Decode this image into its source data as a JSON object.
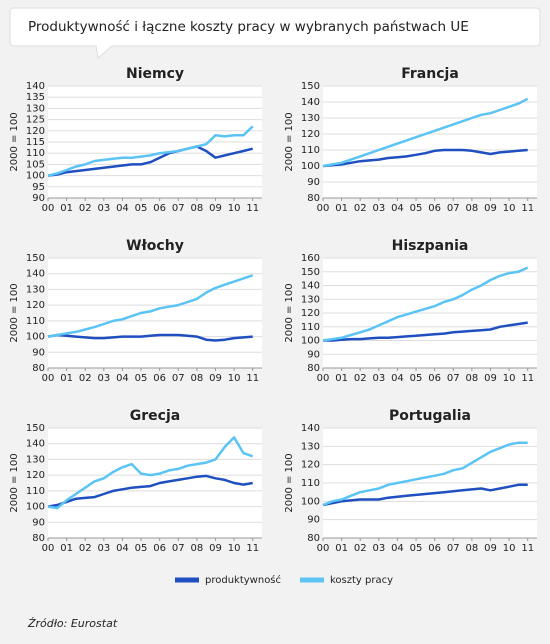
{
  "title": "Produktywność i łączne koszty pracy w wybranych państwach UE",
  "source": "Źródło: Eurostat",
  "chart_data": [
    {
      "type": "line",
      "title": "Niemcy",
      "ylabel": "2000 = 100",
      "x": [
        0,
        0.5,
        1,
        1.5,
        2,
        2.5,
        3,
        3.5,
        4,
        4.5,
        5,
        5.5,
        6,
        6.5,
        7,
        7.5,
        8,
        8.5,
        9,
        9.5,
        10,
        10.5,
        11
      ],
      "xlim": [
        0,
        11.5
      ],
      "xticks": [
        {
          "value": 0,
          "label": "00"
        },
        {
          "value": 1,
          "label": "01"
        },
        {
          "value": 2,
          "label": "02"
        },
        {
          "value": 3,
          "label": "03"
        },
        {
          "value": 4,
          "label": "04"
        },
        {
          "value": 5,
          "label": "05"
        },
        {
          "value": 6,
          "label": "06"
        },
        {
          "value": 7,
          "label": "07"
        },
        {
          "value": 8,
          "label": "08"
        },
        {
          "value": 9,
          "label": "09"
        },
        10,
        11
      ],
      "ylim": [
        90,
        140
      ],
      "yticks": [
        90,
        95,
        100,
        105,
        110,
        115,
        120,
        125,
        130,
        135,
        140
      ],
      "grid": true,
      "series": [
        {
          "name": "produktywność",
          "color": "#1f4fc0",
          "values": [
            100,
            100.5,
            101.5,
            102,
            102.5,
            103,
            103.5,
            104,
            104.5,
            105,
            105,
            106,
            108,
            110,
            111,
            112,
            113,
            111,
            108,
            109,
            110,
            111,
            112
          ]
        },
        {
          "name": "koszty pracy",
          "color": "#5bc4f5",
          "values": [
            100,
            101,
            102.5,
            104,
            105,
            106.5,
            107,
            107.5,
            108,
            108,
            108.5,
            109,
            110,
            110.5,
            111,
            112,
            113,
            114,
            118,
            117.5,
            118,
            118,
            122
          ]
        }
      ]
    },
    {
      "type": "line",
      "title": "Francja",
      "ylabel": "2000 = 100",
      "x": [
        0,
        0.5,
        1,
        1.5,
        2,
        2.5,
        3,
        3.5,
        4,
        4.5,
        5,
        5.5,
        6,
        6.5,
        7,
        7.5,
        8,
        8.5,
        9,
        9.5,
        10,
        10.5,
        11
      ],
      "xlim": [
        0,
        11.5
      ],
      "xticks": [
        {
          "value": 0,
          "label": "00"
        },
        {
          "value": 1,
          "label": "01"
        },
        {
          "value": 2,
          "label": "02"
        },
        {
          "value": 3,
          "label": "03"
        },
        {
          "value": 4,
          "label": "04"
        },
        {
          "value": 5,
          "label": "05"
        },
        {
          "value": 6,
          "label": "06"
        },
        {
          "value": 7,
          "label": "07"
        },
        {
          "value": 8,
          "label": "08"
        },
        {
          "value": 9,
          "label": "09"
        },
        10,
        11
      ],
      "ylim": [
        80,
        150
      ],
      "yticks": [
        80,
        90,
        100,
        110,
        120,
        130,
        140,
        150
      ],
      "grid": true,
      "series": [
        {
          "color": "#1f4fc0",
          "values": [
            100,
            100.5,
            101,
            102,
            103,
            103.5,
            104,
            105,
            105.5,
            106,
            107,
            108,
            109.5,
            110,
            110,
            110,
            109.5,
            108.5,
            107.5,
            108.5,
            109,
            109.5,
            110
          ]
        },
        {
          "color": "#5bc4f5",
          "values": [
            100,
            101,
            102,
            104,
            106,
            108,
            110,
            112,
            114,
            116,
            118,
            120,
            122,
            124,
            126,
            128,
            130,
            132,
            133,
            135,
            137,
            139,
            142
          ]
        }
      ]
    },
    {
      "type": "line",
      "title": "Włochy",
      "ylabel": "2000 = 100",
      "x": [
        0,
        0.5,
        1,
        1.5,
        2,
        2.5,
        3,
        3.5,
        4,
        4.5,
        5,
        5.5,
        6,
        6.5,
        7,
        7.5,
        8,
        8.5,
        9,
        9.5,
        10,
        10.5,
        11
      ],
      "xlim": [
        0,
        11.5
      ],
      "xticks": [
        {
          "value": 0,
          "label": "00"
        },
        {
          "value": 1,
          "label": "01"
        },
        {
          "value": 2,
          "label": "02"
        },
        {
          "value": 3,
          "label": "03"
        },
        {
          "value": 4,
          "label": "04"
        },
        {
          "value": 5,
          "label": "05"
        },
        {
          "value": 6,
          "label": "06"
        },
        {
          "value": 7,
          "label": "07"
        },
        {
          "value": 8,
          "label": "08"
        },
        {
          "value": 9,
          "label": "09"
        },
        10,
        11
      ],
      "ylim": [
        80,
        150
      ],
      "yticks": [
        80,
        90,
        100,
        110,
        120,
        130,
        140,
        150
      ],
      "grid": true,
      "series": [
        {
          "color": "#1f4fc0",
          "values": [
            100,
            101,
            100.5,
            100,
            99.5,
            99,
            99,
            99.5,
            100,
            100,
            100,
            100.5,
            101,
            101,
            101,
            100.5,
            100,
            98,
            97.5,
            98,
            99,
            99.5,
            100
          ]
        },
        {
          "color": "#5bc4f5",
          "values": [
            100,
            101,
            102,
            103,
            104.5,
            106,
            108,
            110,
            111,
            113,
            115,
            116,
            118,
            119,
            120,
            122,
            124,
            128,
            131,
            133,
            135,
            137,
            139
          ]
        }
      ]
    },
    {
      "type": "line",
      "title": "Hiszpania",
      "ylabel": "2000 = 100",
      "x": [
        0,
        0.5,
        1,
        1.5,
        2,
        2.5,
        3,
        3.5,
        4,
        4.5,
        5,
        5.5,
        6,
        6.5,
        7,
        7.5,
        8,
        8.5,
        9,
        9.5,
        10,
        10.5,
        11
      ],
      "xlim": [
        0,
        11.5
      ],
      "xticks": [
        {
          "value": 0,
          "label": "00"
        },
        {
          "value": 1,
          "label": "01"
        },
        {
          "value": 2,
          "label": "02"
        },
        {
          "value": 3,
          "label": "03"
        },
        {
          "value": 4,
          "label": "04"
        },
        {
          "value": 5,
          "label": "05"
        },
        {
          "value": 6,
          "label": "06"
        },
        {
          "value": 7,
          "label": "07"
        },
        {
          "value": 8,
          "label": "08"
        },
        {
          "value": 9,
          "label": "09"
        },
        10,
        11
      ],
      "ylim": [
        80,
        160
      ],
      "yticks": [
        80,
        90,
        100,
        110,
        120,
        130,
        140,
        150,
        160
      ],
      "grid": true,
      "series": [
        {
          "color": "#1f4fc0",
          "values": [
            100,
            100,
            100.5,
            101,
            101,
            101.5,
            102,
            102,
            102.5,
            103,
            103.5,
            104,
            104.5,
            105,
            106,
            106.5,
            107,
            107.5,
            108,
            110,
            111,
            112,
            113
          ]
        },
        {
          "color": "#5bc4f5",
          "values": [
            100,
            101,
            102,
            104,
            106,
            108,
            111,
            114,
            117,
            119,
            121,
            123,
            125,
            128,
            130,
            133,
            137,
            140,
            144,
            147,
            149,
            150,
            153
          ]
        }
      ]
    },
    {
      "type": "line",
      "title": "Grecja",
      "ylabel": "2000 = 100",
      "x": [
        0,
        0.5,
        1,
        1.5,
        2,
        2.5,
        3,
        3.5,
        4,
        4.5,
        5,
        5.5,
        6,
        6.5,
        7,
        7.5,
        8,
        8.5,
        9,
        9.5,
        10,
        10.5,
        11
      ],
      "xlim": [
        0,
        11.5
      ],
      "xticks": [
        {
          "value": 0,
          "label": "00"
        },
        {
          "value": 1,
          "label": "01"
        },
        {
          "value": 2,
          "label": "02"
        },
        {
          "value": 3,
          "label": "03"
        },
        {
          "value": 4,
          "label": "04"
        },
        {
          "value": 5,
          "label": "05"
        },
        {
          "value": 6,
          "label": "06"
        },
        {
          "value": 7,
          "label": "07"
        },
        {
          "value": 8,
          "label": "08"
        },
        {
          "value": 9,
          "label": "09"
        },
        10,
        11
      ],
      "ylim": [
        80,
        150
      ],
      "yticks": [
        80,
        90,
        100,
        110,
        120,
        130,
        140,
        150
      ],
      "grid": true,
      "series": [
        {
          "color": "#1f4fc0",
          "values": [
            100,
            101,
            103,
            105,
            105.5,
            106,
            108,
            110,
            111,
            112,
            112.5,
            113,
            115,
            116,
            117,
            118,
            119,
            119.5,
            118,
            117,
            115,
            114,
            115
          ]
        },
        {
          "color": "#5bc4f5",
          "values": [
            100,
            99,
            104,
            108,
            112,
            116,
            118,
            122,
            125,
            127,
            121,
            120,
            121,
            123,
            124,
            126,
            127,
            128,
            130,
            138,
            144,
            134,
            132
          ]
        }
      ]
    },
    {
      "type": "line",
      "title": "Portugalia",
      "ylabel": "2000 = 100",
      "x": [
        0,
        0.5,
        1,
        1.5,
        2,
        2.5,
        3,
        3.5,
        4,
        4.5,
        5,
        5.5,
        6,
        6.5,
        7,
        7.5,
        8,
        8.5,
        9,
        9.5,
        10,
        10.5,
        11
      ],
      "xlim": [
        0,
        11.5
      ],
      "xticks": [
        {
          "value": 0,
          "label": "00"
        },
        {
          "value": 1,
          "label": "01"
        },
        {
          "value": 2,
          "label": "02"
        },
        {
          "value": 3,
          "label": "03"
        },
        {
          "value": 4,
          "label": "04"
        },
        {
          "value": 5,
          "label": "05"
        },
        {
          "value": 6,
          "label": "06"
        },
        {
          "value": 7,
          "label": "07"
        },
        {
          "value": 8,
          "label": "08"
        },
        {
          "value": 9,
          "label": "09"
        },
        10,
        11
      ],
      "ylim": [
        80,
        140
      ],
      "yticks": [
        80,
        90,
        100,
        110,
        120,
        130,
        140
      ],
      "grid": true,
      "series": [
        {
          "color": "#1f4fc0",
          "values": [
            98,
            99,
            100,
            100.5,
            101,
            101,
            101,
            102,
            102.5,
            103,
            103.5,
            104,
            104.5,
            105,
            105.5,
            106,
            106.5,
            107,
            106,
            107,
            108,
            109,
            109
          ]
        },
        {
          "color": "#5bc4f5",
          "values": [
            98,
            100,
            101,
            103,
            105,
            106,
            107,
            109,
            110,
            111,
            112,
            113,
            114,
            115,
            117,
            118,
            121,
            124,
            127,
            129,
            131,
            132,
            132
          ]
        }
      ]
    }
  ]
}
